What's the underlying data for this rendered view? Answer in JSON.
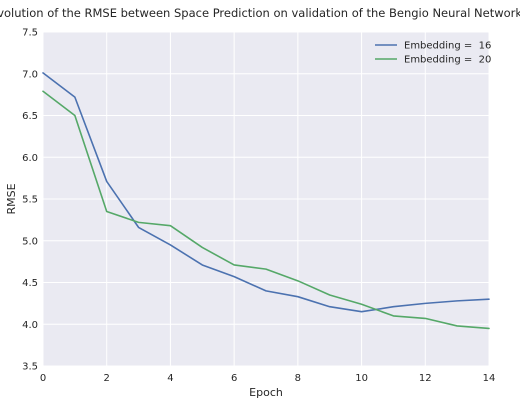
{
  "chart_data": {
    "type": "line",
    "title": "Evolution of the RMSE between Space Prediction on validation of the Bengio Neural Network",
    "xlabel": "Epoch",
    "ylabel": "RMSE",
    "xlim": [
      0,
      14
    ],
    "ylim": [
      3.5,
      7.5
    ],
    "xticks": [
      0,
      2,
      4,
      6,
      8,
      10,
      12,
      14
    ],
    "yticks": [
      3.5,
      4.0,
      4.5,
      5.0,
      5.5,
      6.0,
      6.5,
      7.0,
      7.5
    ],
    "grid": true,
    "legend_position": "top-right",
    "x": [
      0,
      1,
      2,
      3,
      4,
      5,
      6,
      7,
      8,
      9,
      10,
      11,
      12,
      13,
      14
    ],
    "series": [
      {
        "name": "Embedding =  16",
        "color": "#4c72b0",
        "values": [
          7.01,
          6.72,
          5.71,
          5.16,
          4.95,
          4.71,
          4.57,
          4.4,
          4.33,
          4.21,
          4.15,
          4.21,
          4.25,
          4.28,
          4.3
        ]
      },
      {
        "name": "Embedding =  20",
        "color": "#55a868",
        "values": [
          6.79,
          6.5,
          5.35,
          5.22,
          5.18,
          4.92,
          4.71,
          4.66,
          4.52,
          4.35,
          4.24,
          4.1,
          4.07,
          3.98,
          3.95
        ]
      }
    ]
  }
}
